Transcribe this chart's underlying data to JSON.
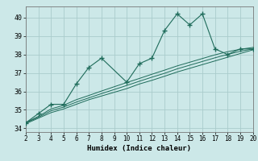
{
  "xlabel": "Humidex (Indice chaleur)",
  "bg_color": "#cce8e8",
  "line_color": "#1e6b5a",
  "grid_color": "#aacccc",
  "xlim": [
    2,
    20
  ],
  "ylim": [
    33.8,
    40.6
  ],
  "xticks": [
    2,
    3,
    4,
    5,
    6,
    7,
    8,
    9,
    10,
    11,
    12,
    13,
    14,
    15,
    16,
    17,
    18,
    19,
    20
  ],
  "yticks": [
    34,
    35,
    36,
    37,
    38,
    39,
    40
  ],
  "x": [
    2,
    3,
    4,
    5,
    6,
    7,
    8,
    9,
    10,
    11,
    12,
    13,
    14,
    15,
    16,
    17,
    18,
    19,
    20
  ],
  "line1_x": [
    2,
    3,
    4,
    5,
    6,
    7,
    8,
    10,
    11,
    12,
    13,
    14,
    15,
    16,
    17,
    18,
    19,
    20
  ],
  "line1_y": [
    34.3,
    34.8,
    35.3,
    35.3,
    36.4,
    37.3,
    37.8,
    36.5,
    37.5,
    37.8,
    39.3,
    40.2,
    39.6,
    40.2,
    38.3,
    38.0,
    38.3,
    38.3
  ],
  "line2": [
    34.25,
    34.55,
    34.85,
    35.05,
    35.3,
    35.55,
    35.75,
    35.95,
    36.15,
    36.4,
    36.6,
    36.82,
    37.05,
    37.25,
    37.45,
    37.65,
    37.85,
    38.05,
    38.25
  ],
  "line3": [
    34.3,
    34.6,
    34.95,
    35.15,
    35.42,
    35.65,
    35.88,
    36.1,
    36.32,
    36.55,
    36.77,
    36.98,
    37.22,
    37.42,
    37.62,
    37.82,
    38.0,
    38.17,
    38.3
  ],
  "line4": [
    34.3,
    34.65,
    35.05,
    35.25,
    35.55,
    35.78,
    36.02,
    36.25,
    36.48,
    36.7,
    36.93,
    37.15,
    37.38,
    37.58,
    37.78,
    37.98,
    38.15,
    38.28,
    38.38
  ]
}
